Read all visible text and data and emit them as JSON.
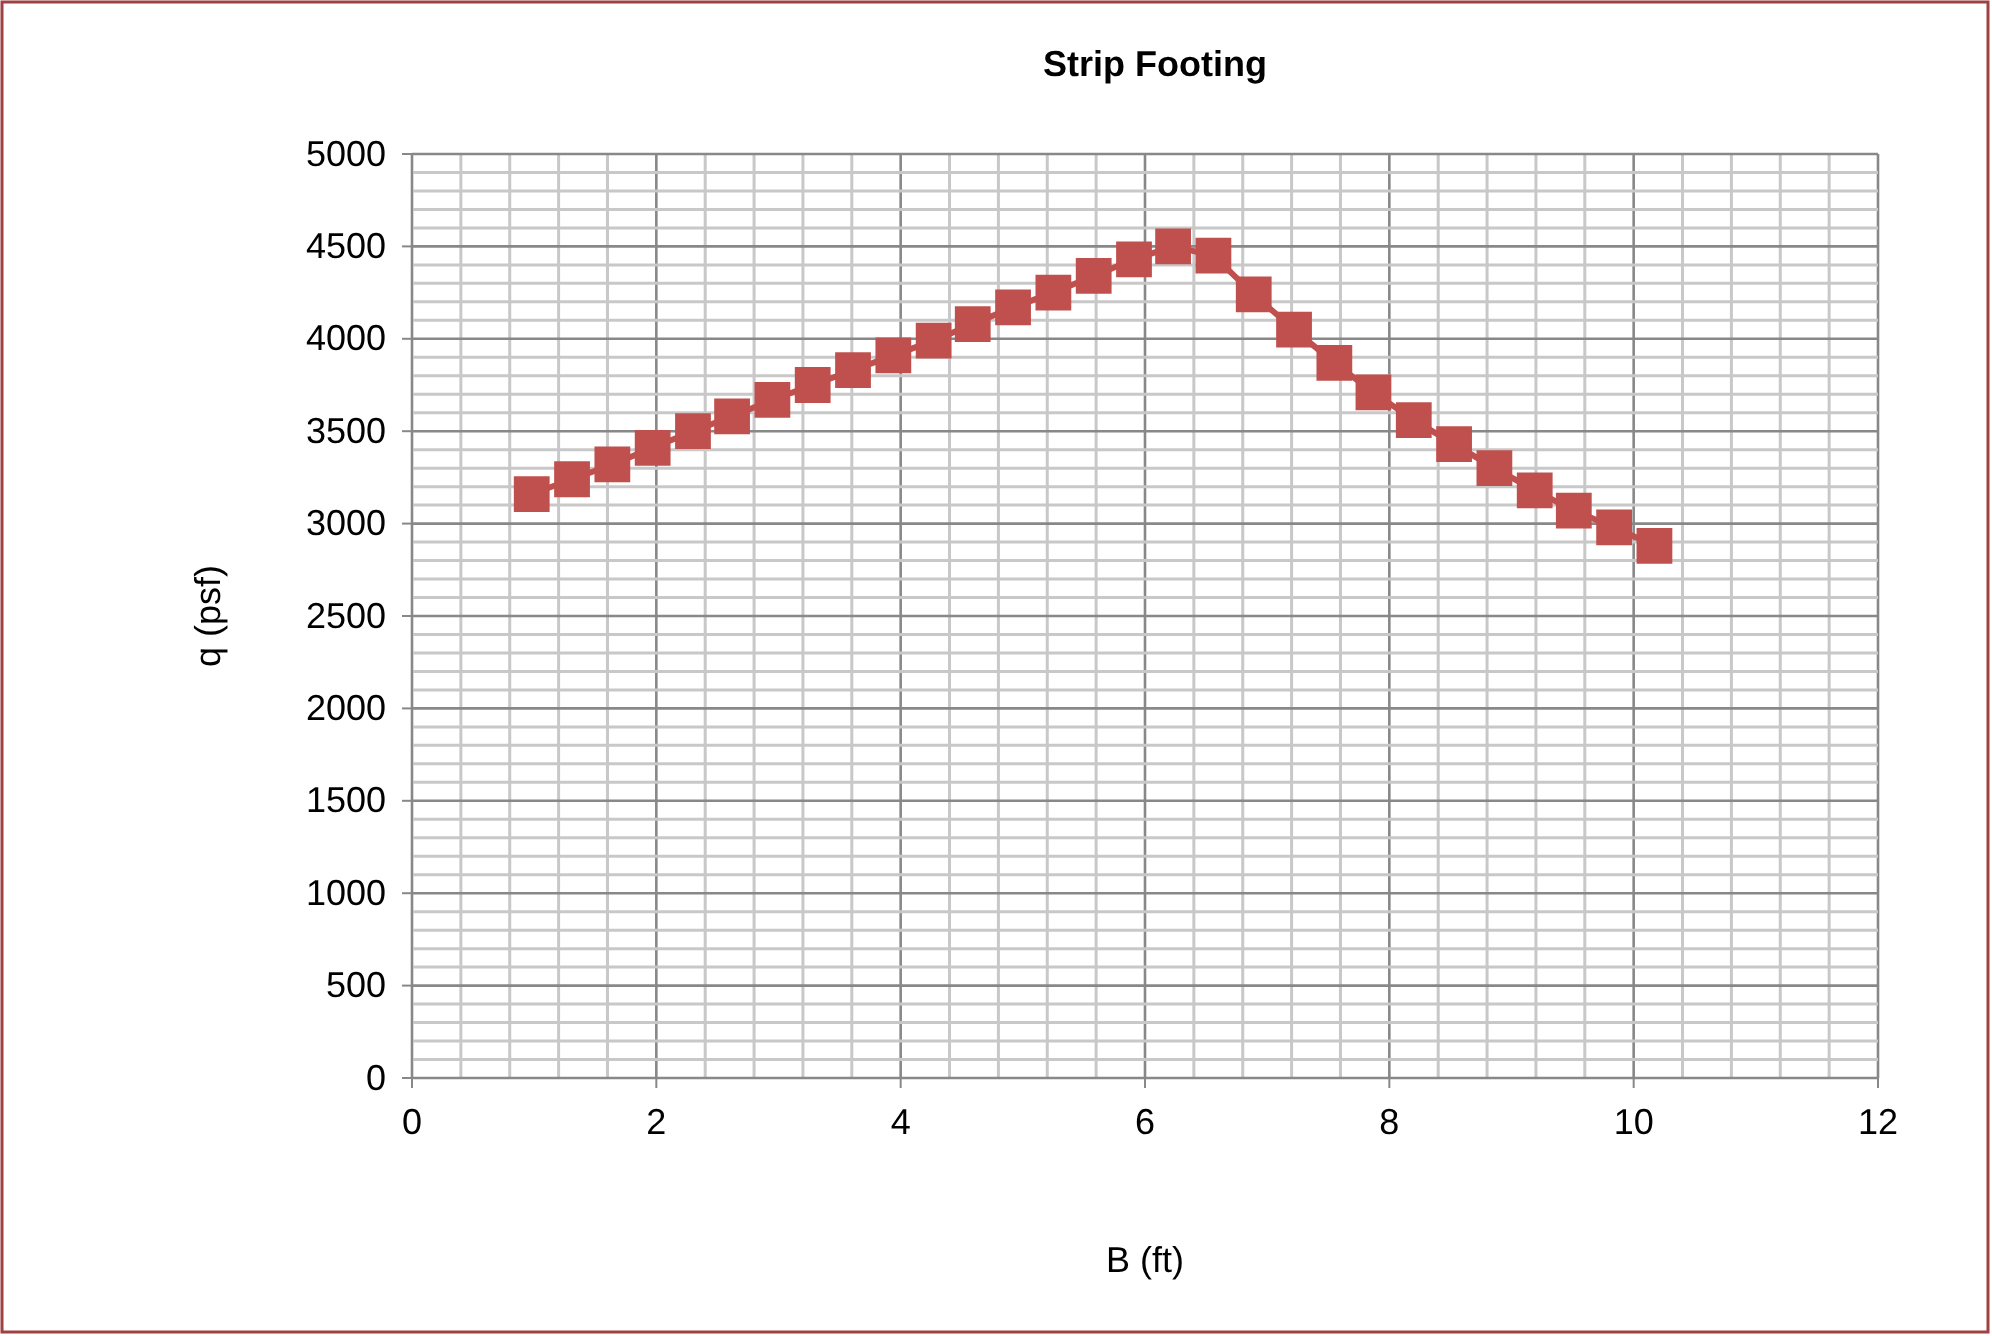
{
  "chart_data": {
    "type": "line",
    "title": "Strip Footing",
    "xlabel": "B (ft)",
    "ylabel": "q (psf)",
    "xlim": [
      0,
      12
    ],
    "xticks": [
      0,
      2,
      4,
      6,
      8,
      10,
      12
    ],
    "ylim": [
      0,
      5000
    ],
    "yticks": [
      0,
      500,
      1000,
      1500,
      2000,
      2500,
      3000,
      3500,
      4000,
      4500,
      5000
    ],
    "grid": true,
    "marker": "square",
    "line_style": "solid",
    "series": [
      {
        "color": "#c0504d",
        "x": [
          0.98,
          1.31,
          1.64,
          1.97,
          2.3,
          2.62,
          2.95,
          3.28,
          3.61,
          3.94,
          4.27,
          4.59,
          4.92,
          5.25,
          5.58,
          5.91,
          6.23,
          6.56,
          6.89,
          7.22,
          7.55,
          7.87,
          8.2,
          8.53,
          8.86,
          9.19,
          9.51,
          9.84,
          10.17
        ],
        "values": [
          3160,
          3240,
          3320,
          3410,
          3500,
          3580,
          3670,
          3750,
          3830,
          3910,
          3990,
          4080,
          4170,
          4250,
          4340,
          4430,
          4500,
          4450,
          4240,
          4050,
          3870,
          3710,
          3560,
          3430,
          3300,
          3180,
          3070,
          2980,
          2880
        ]
      }
    ]
  }
}
